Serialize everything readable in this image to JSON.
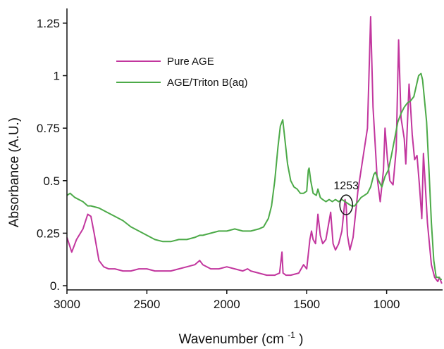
{
  "chart_data": {
    "type": "line",
    "title": "",
    "xlabel": "Wavenumber (cm",
    "xlabel_sup": "-1",
    "xlabel_close": ")",
    "ylabel": "Absorbance (A.U.)",
    "xlim": [
      3000,
      650
    ],
    "x_reversed": true,
    "ylim": [
      -0.02,
      1.32
    ],
    "x_ticks": [
      {
        "value": 3000,
        "label": "3000"
      },
      {
        "value": 2500,
        "label": "2500"
      },
      {
        "value": 2000,
        "label": "2000"
      },
      {
        "value": 1500,
        "label": "1500"
      },
      {
        "value": 1000,
        "label": "1000"
      }
    ],
    "y_ticks": [
      {
        "value": 0,
        "label": "0."
      },
      {
        "value": 0.25,
        "label": "0.25"
      },
      {
        "value": 0.5,
        "label": "0.5"
      },
      {
        "value": 0.75,
        "label": "0.75"
      },
      {
        "value": 1.0,
        "label": "1"
      },
      {
        "value": 1.25,
        "label": "1.25"
      }
    ],
    "grid": false,
    "legend_position": "upper-left",
    "series": [
      {
        "name": "Pure AGE",
        "color": "#c2369e",
        "points": [
          [
            3000,
            0.23
          ],
          [
            2970,
            0.16
          ],
          [
            2940,
            0.22
          ],
          [
            2900,
            0.27
          ],
          [
            2870,
            0.34
          ],
          [
            2850,
            0.33
          ],
          [
            2830,
            0.25
          ],
          [
            2800,
            0.12
          ],
          [
            2770,
            0.09
          ],
          [
            2740,
            0.08
          ],
          [
            2700,
            0.08
          ],
          [
            2650,
            0.07
          ],
          [
            2600,
            0.07
          ],
          [
            2550,
            0.08
          ],
          [
            2500,
            0.08
          ],
          [
            2450,
            0.07
          ],
          [
            2400,
            0.07
          ],
          [
            2350,
            0.07
          ],
          [
            2300,
            0.08
          ],
          [
            2250,
            0.09
          ],
          [
            2200,
            0.1
          ],
          [
            2170,
            0.12
          ],
          [
            2150,
            0.1
          ],
          [
            2100,
            0.08
          ],
          [
            2050,
            0.08
          ],
          [
            2000,
            0.09
          ],
          [
            1950,
            0.08
          ],
          [
            1900,
            0.07
          ],
          [
            1870,
            0.08
          ],
          [
            1850,
            0.07
          ],
          [
            1800,
            0.06
          ],
          [
            1750,
            0.05
          ],
          [
            1700,
            0.05
          ],
          [
            1670,
            0.06
          ],
          [
            1655,
            0.16
          ],
          [
            1648,
            0.06
          ],
          [
            1630,
            0.05
          ],
          [
            1600,
            0.05
          ],
          [
            1550,
            0.06
          ],
          [
            1520,
            0.1
          ],
          [
            1500,
            0.08
          ],
          [
            1480,
            0.22
          ],
          [
            1470,
            0.26
          ],
          [
            1460,
            0.22
          ],
          [
            1445,
            0.2
          ],
          [
            1430,
            0.34
          ],
          [
            1415,
            0.24
          ],
          [
            1400,
            0.2
          ],
          [
            1380,
            0.22
          ],
          [
            1350,
            0.35
          ],
          [
            1335,
            0.2
          ],
          [
            1320,
            0.17
          ],
          [
            1300,
            0.2
          ],
          [
            1280,
            0.26
          ],
          [
            1260,
            0.41
          ],
          [
            1253,
            0.38
          ],
          [
            1245,
            0.24
          ],
          [
            1230,
            0.17
          ],
          [
            1210,
            0.23
          ],
          [
            1180,
            0.45
          ],
          [
            1150,
            0.6
          ],
          [
            1120,
            0.75
          ],
          [
            1100,
            1.28
          ],
          [
            1085,
            0.85
          ],
          [
            1060,
            0.52
          ],
          [
            1040,
            0.4
          ],
          [
            1020,
            0.55
          ],
          [
            1010,
            0.75
          ],
          [
            995,
            0.6
          ],
          [
            980,
            0.5
          ],
          [
            960,
            0.48
          ],
          [
            940,
            0.65
          ],
          [
            925,
            1.17
          ],
          [
            910,
            0.8
          ],
          [
            890,
            0.7
          ],
          [
            880,
            0.58
          ],
          [
            860,
            0.96
          ],
          [
            850,
            0.85
          ],
          [
            840,
            0.72
          ],
          [
            825,
            0.6
          ],
          [
            810,
            0.62
          ],
          [
            795,
            0.48
          ],
          [
            780,
            0.32
          ],
          [
            770,
            0.63
          ],
          [
            760,
            0.5
          ],
          [
            745,
            0.3
          ],
          [
            720,
            0.1
          ],
          [
            700,
            0.04
          ],
          [
            680,
            0.02
          ],
          [
            670,
            0.04
          ],
          [
            660,
            0.02
          ],
          [
            655,
            0.01
          ]
        ]
      },
      {
        "name": "AGE/Triton B(aq)",
        "color": "#4caa48",
        "points": [
          [
            3000,
            0.43
          ],
          [
            2980,
            0.44
          ],
          [
            2950,
            0.42
          ],
          [
            2900,
            0.4
          ],
          [
            2870,
            0.38
          ],
          [
            2850,
            0.38
          ],
          [
            2800,
            0.37
          ],
          [
            2750,
            0.35
          ],
          [
            2700,
            0.33
          ],
          [
            2650,
            0.31
          ],
          [
            2600,
            0.28
          ],
          [
            2550,
            0.26
          ],
          [
            2500,
            0.24
          ],
          [
            2450,
            0.22
          ],
          [
            2400,
            0.21
          ],
          [
            2350,
            0.21
          ],
          [
            2300,
            0.22
          ],
          [
            2250,
            0.22
          ],
          [
            2200,
            0.23
          ],
          [
            2170,
            0.24
          ],
          [
            2150,
            0.24
          ],
          [
            2100,
            0.25
          ],
          [
            2050,
            0.26
          ],
          [
            2000,
            0.26
          ],
          [
            1950,
            0.27
          ],
          [
            1900,
            0.26
          ],
          [
            1850,
            0.26
          ],
          [
            1800,
            0.27
          ],
          [
            1770,
            0.28
          ],
          [
            1740,
            0.32
          ],
          [
            1720,
            0.38
          ],
          [
            1700,
            0.5
          ],
          [
            1680,
            0.66
          ],
          [
            1665,
            0.76
          ],
          [
            1650,
            0.79
          ],
          [
            1640,
            0.72
          ],
          [
            1620,
            0.58
          ],
          [
            1600,
            0.5
          ],
          [
            1580,
            0.47
          ],
          [
            1560,
            0.46
          ],
          [
            1540,
            0.44
          ],
          [
            1520,
            0.44
          ],
          [
            1500,
            0.45
          ],
          [
            1490,
            0.55
          ],
          [
            1485,
            0.56
          ],
          [
            1475,
            0.5
          ],
          [
            1460,
            0.44
          ],
          [
            1440,
            0.43
          ],
          [
            1430,
            0.46
          ],
          [
            1415,
            0.42
          ],
          [
            1400,
            0.41
          ],
          [
            1380,
            0.4
          ],
          [
            1360,
            0.41
          ],
          [
            1340,
            0.4
          ],
          [
            1320,
            0.41
          ],
          [
            1300,
            0.4
          ],
          [
            1280,
            0.41
          ],
          [
            1260,
            0.4
          ],
          [
            1240,
            0.39
          ],
          [
            1220,
            0.38
          ],
          [
            1200,
            0.38
          ],
          [
            1180,
            0.4
          ],
          [
            1160,
            0.42
          ],
          [
            1140,
            0.43
          ],
          [
            1120,
            0.44
          ],
          [
            1100,
            0.47
          ],
          [
            1080,
            0.53
          ],
          [
            1070,
            0.54
          ],
          [
            1050,
            0.5
          ],
          [
            1030,
            0.47
          ],
          [
            1010,
            0.52
          ],
          [
            990,
            0.55
          ],
          [
            970,
            0.62
          ],
          [
            950,
            0.7
          ],
          [
            930,
            0.78
          ],
          [
            910,
            0.82
          ],
          [
            890,
            0.85
          ],
          [
            870,
            0.87
          ],
          [
            850,
            0.88
          ],
          [
            830,
            0.9
          ],
          [
            815,
            0.95
          ],
          [
            800,
            1.0
          ],
          [
            785,
            1.01
          ],
          [
            775,
            0.98
          ],
          [
            765,
            0.9
          ],
          [
            750,
            0.78
          ],
          [
            735,
            0.55
          ],
          [
            720,
            0.3
          ],
          [
            705,
            0.12
          ],
          [
            690,
            0.04
          ],
          [
            675,
            0.04
          ],
          [
            660,
            0.03
          ],
          [
            655,
            0.03
          ]
        ]
      }
    ],
    "annotations": [
      {
        "text": "1253",
        "x": 1253,
        "y": 0.385
      }
    ]
  }
}
